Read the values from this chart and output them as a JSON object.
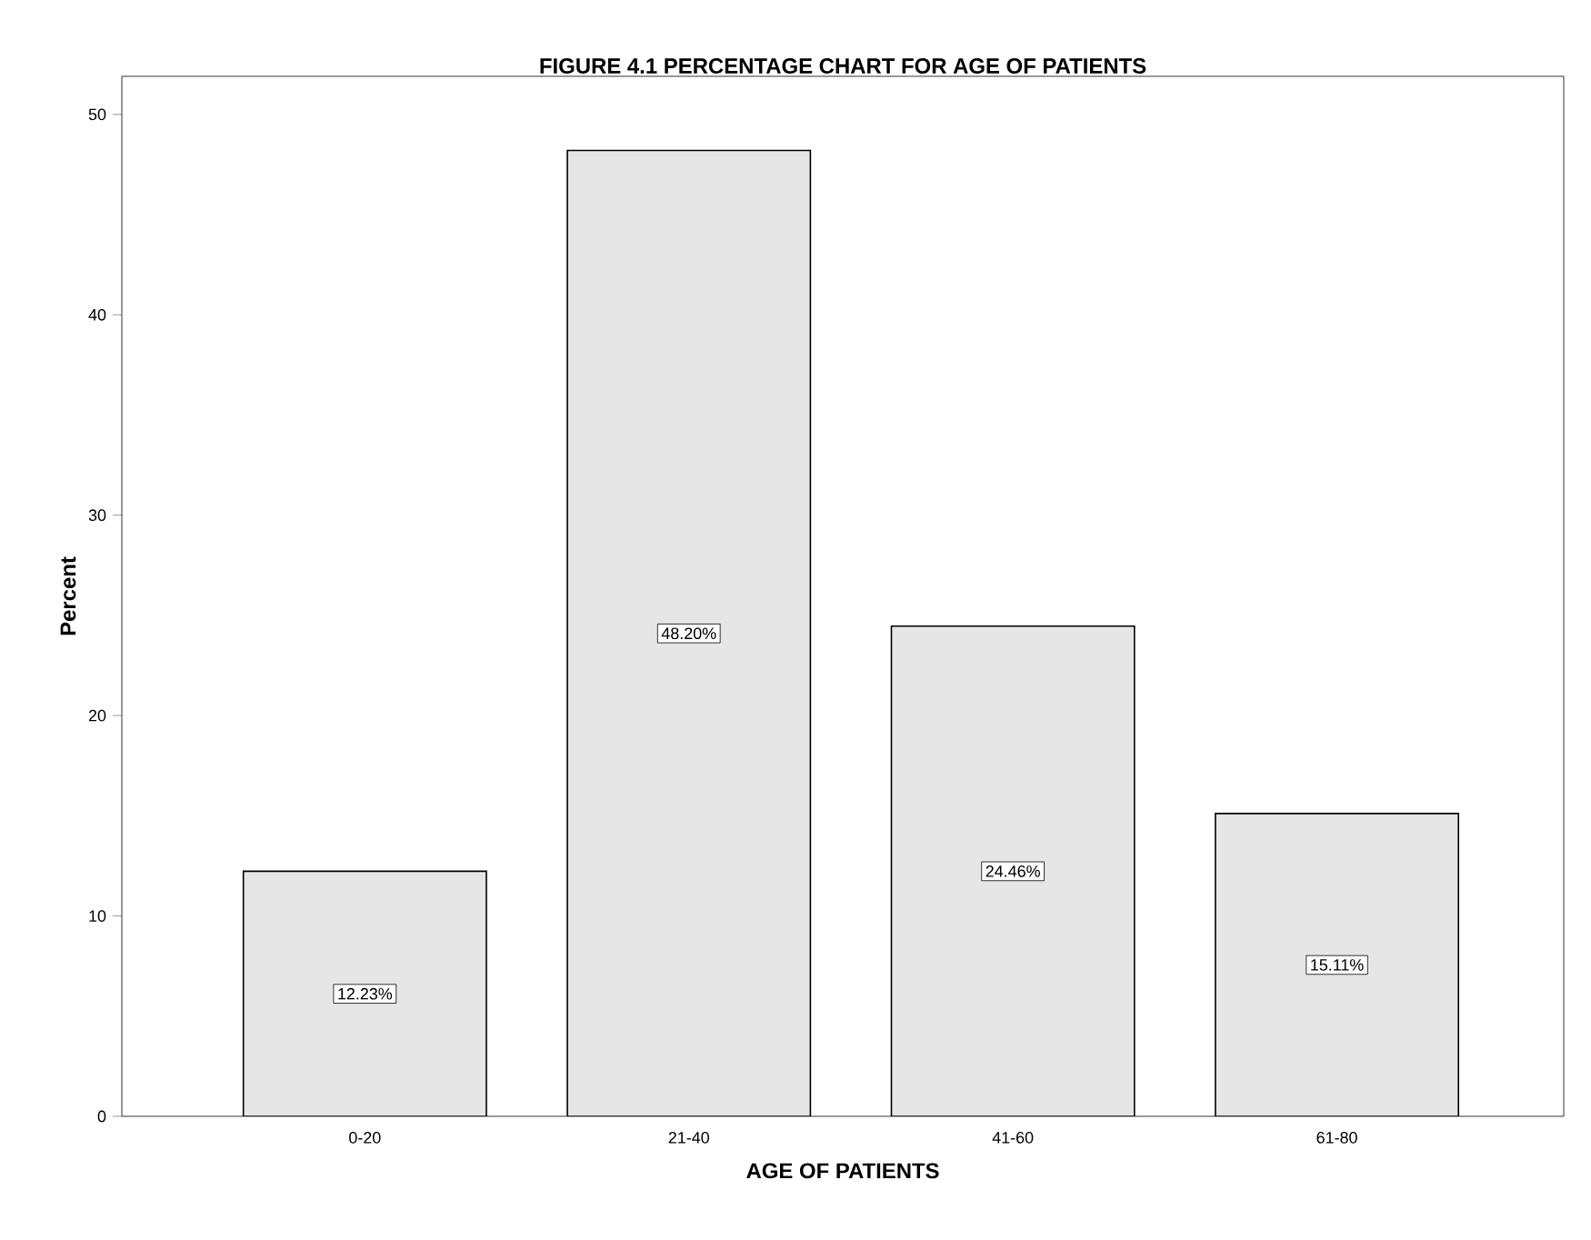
{
  "chart_data": {
    "type": "bar",
    "title": "FIGURE 4.1 PERCENTAGE CHART FOR AGE OF PATIENTS",
    "xlabel": "AGE OF PATIENTS",
    "ylabel": "Percent",
    "categories": [
      "0-20",
      "21-40",
      "41-60",
      "61-80"
    ],
    "values": [
      12.23,
      48.2,
      24.46,
      15.11
    ],
    "value_labels": [
      "12.23%",
      "48.20%",
      "24.46%",
      "15.11%"
    ],
    "color": "#e6e6e6",
    "ylim": [
      0,
      51.9
    ],
    "yticks": [
      0,
      10,
      20,
      30,
      40,
      50
    ]
  }
}
